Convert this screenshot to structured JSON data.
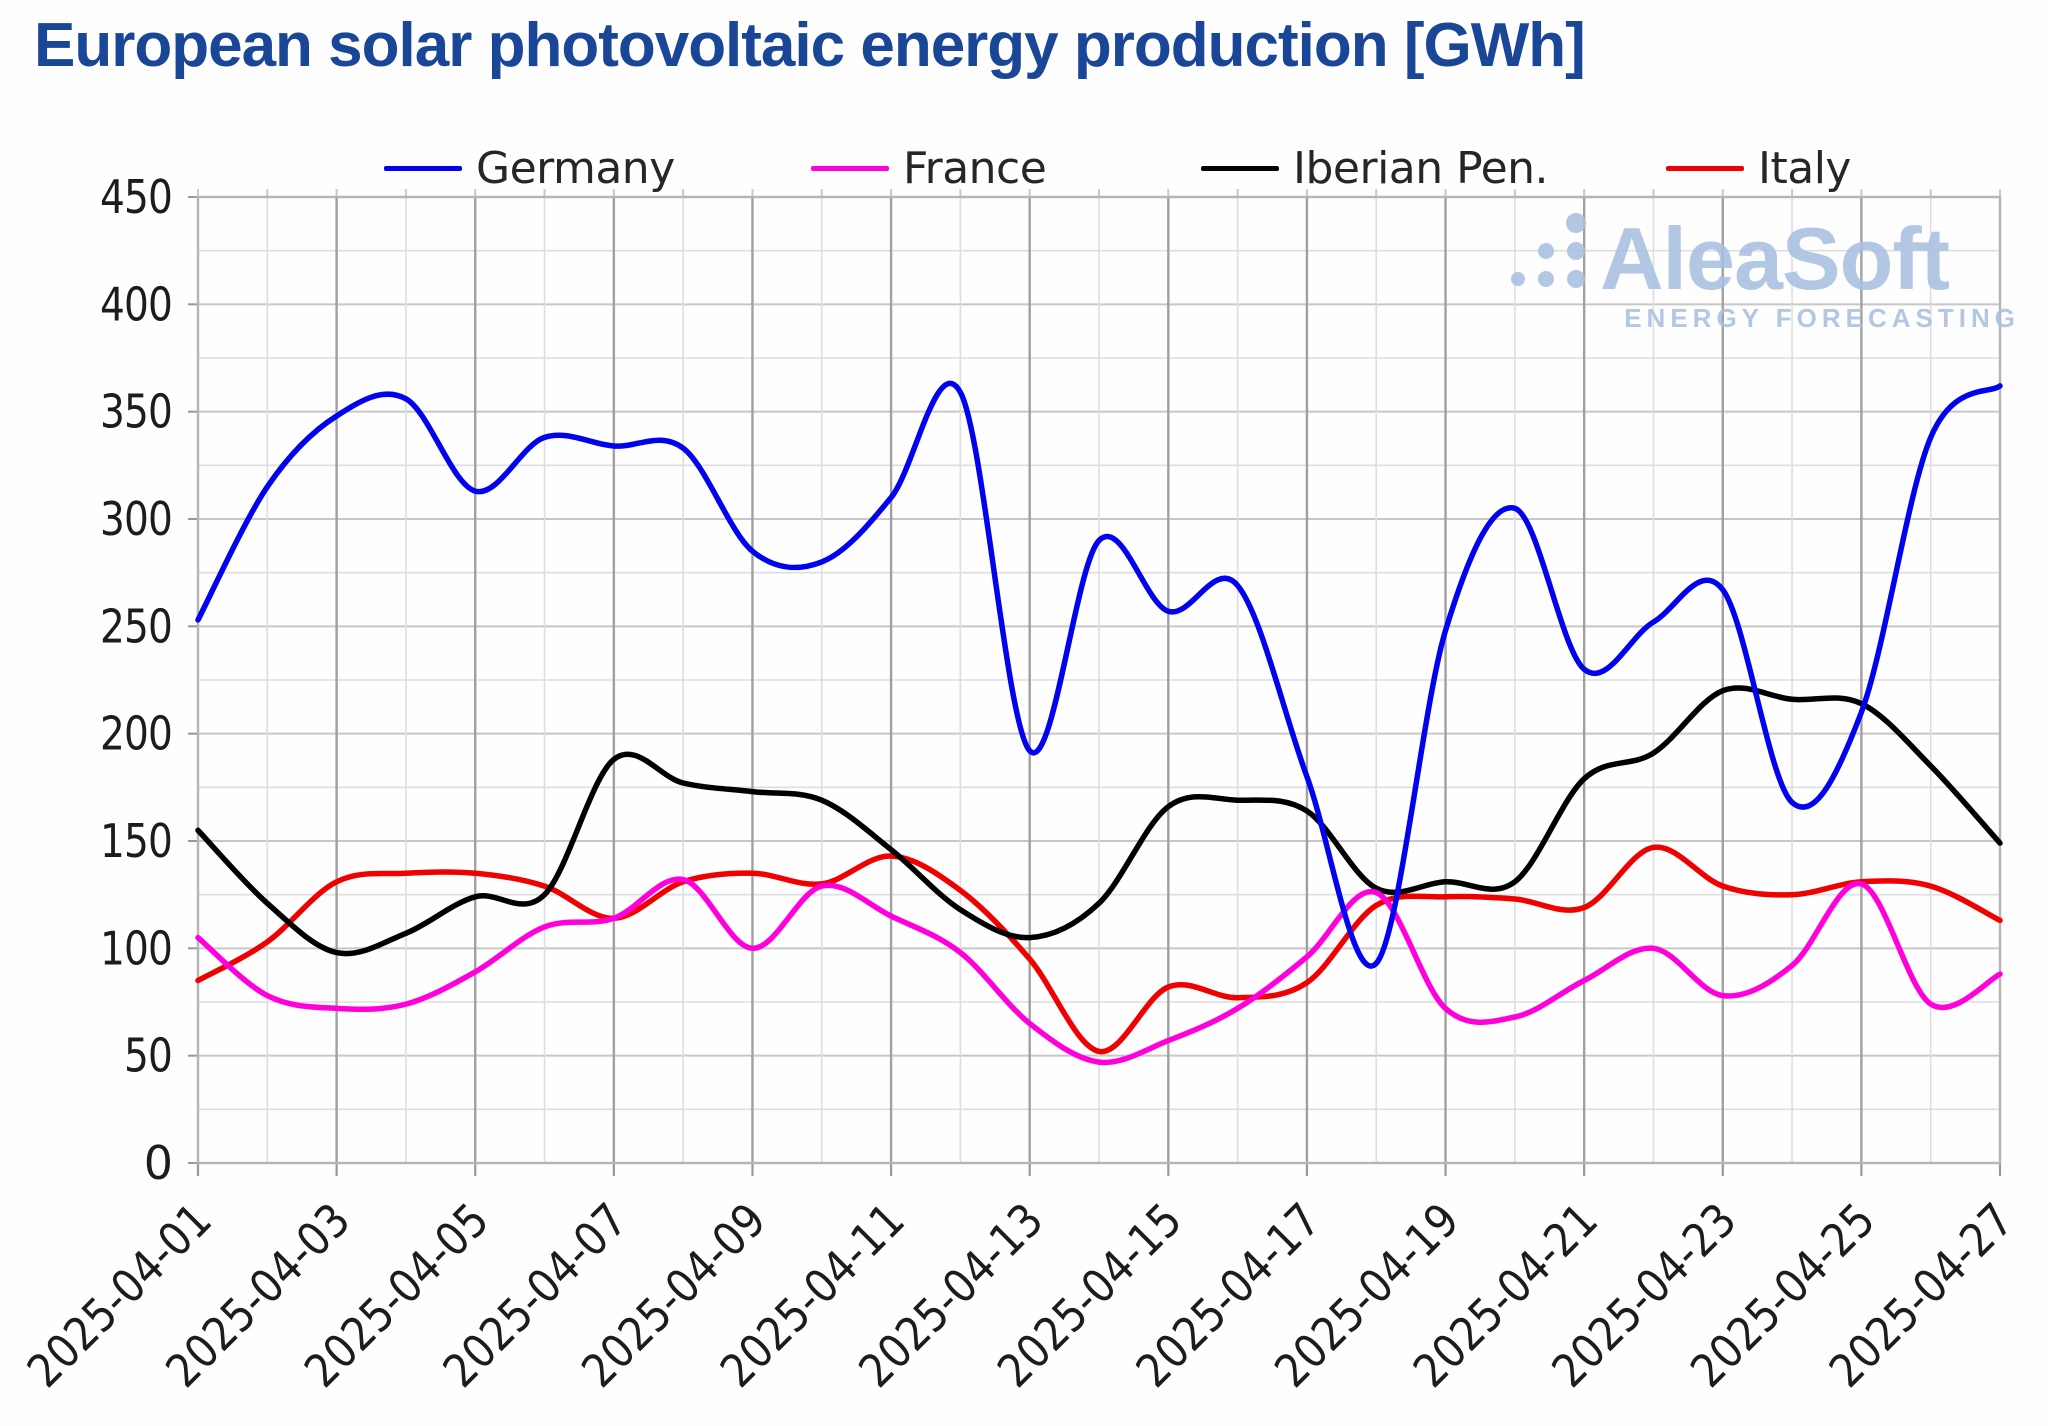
{
  "title": {
    "text": "European solar photovoltaic energy production [GWh]",
    "color": "#1a4697"
  },
  "legend": {
    "items": [
      {
        "label": "Germany",
        "color": "#0202ee"
      },
      {
        "label": "France",
        "color": "#ff00dd"
      },
      {
        "label": "Iberian Pen.",
        "color": "#000000"
      },
      {
        "label": "Italy",
        "color": "#f00000"
      }
    ]
  },
  "watermark": {
    "brand": "AleaSoft",
    "tagline": "ENERGY FORECASTING",
    "color": "#a8c0e0"
  },
  "axes": {
    "y_label_color": "#1c1c1c",
    "x_label_color": "#1c1c1c",
    "grid_minor_color": "#dedede",
    "grid_major_color": "#c7c7c7",
    "grid_day_dark_color": "#a0a0a0",
    "frame_color": "#b5b5b5"
  },
  "chart_data": {
    "type": "line",
    "title": "European solar photovoltaic energy production [GWh]",
    "x": [
      "2025-04-01",
      "2025-04-02",
      "2025-04-03",
      "2025-04-04",
      "2025-04-05",
      "2025-04-06",
      "2025-04-07",
      "2025-04-08",
      "2025-04-09",
      "2025-04-10",
      "2025-04-11",
      "2025-04-12",
      "2025-04-13",
      "2025-04-14",
      "2025-04-15",
      "2025-04-16",
      "2025-04-17",
      "2025-04-18",
      "2025-04-19",
      "2025-04-20",
      "2025-04-21",
      "2025-04-22",
      "2025-04-23",
      "2025-04-24",
      "2025-04-25",
      "2025-04-26",
      "2025-04-27"
    ],
    "series": [
      {
        "name": "Germany",
        "color": "#0202ee",
        "values": [
          253,
          315,
          348,
          356,
          313,
          338,
          334,
          333,
          285,
          280,
          310,
          359,
          192,
          290,
          257,
          269,
          180,
          93,
          248,
          305,
          230,
          252,
          267,
          168,
          210,
          338,
          362
        ]
      },
      {
        "name": "France",
        "color": "#ff00dd",
        "values": [
          105,
          78,
          72,
          74,
          89,
          110,
          114,
          132,
          100,
          129,
          115,
          98,
          65,
          47,
          57,
          72,
          96,
          126,
          72,
          68,
          85,
          100,
          78,
          92,
          130,
          74,
          88
        ]
      },
      {
        "name": "Iberian Pen.",
        "color": "#000000",
        "values": [
          155,
          121,
          98,
          107,
          124,
          125,
          188,
          177,
          173,
          169,
          146,
          118,
          105,
          121,
          166,
          169,
          164,
          128,
          131,
          131,
          179,
          191,
          220,
          216,
          214,
          185,
          149
        ]
      },
      {
        "name": "Italy",
        "color": "#f00000",
        "values": [
          85,
          103,
          131,
          135,
          135,
          129,
          114,
          131,
          135,
          130,
          143,
          127,
          95,
          52,
          82,
          77,
          84,
          120,
          124,
          123,
          119,
          147,
          129,
          125,
          131,
          129,
          113
        ]
      }
    ],
    "ylim": [
      0,
      450
    ],
    "yticks": [
      0,
      50,
      100,
      150,
      200,
      250,
      300,
      350,
      400,
      450
    ],
    "y_minor_step": 25,
    "xtick_labels": [
      "2025-04-01",
      "2025-04-03",
      "2025-04-05",
      "2025-04-07",
      "2025-04-09",
      "2025-04-11",
      "2025-04-13",
      "2025-04-15",
      "2025-04-17",
      "2025-04-19",
      "2025-04-21",
      "2025-04-23",
      "2025-04-25",
      "2025-04-27"
    ],
    "xtick_rotation": -45,
    "grid": "on",
    "legend_position": "top"
  }
}
